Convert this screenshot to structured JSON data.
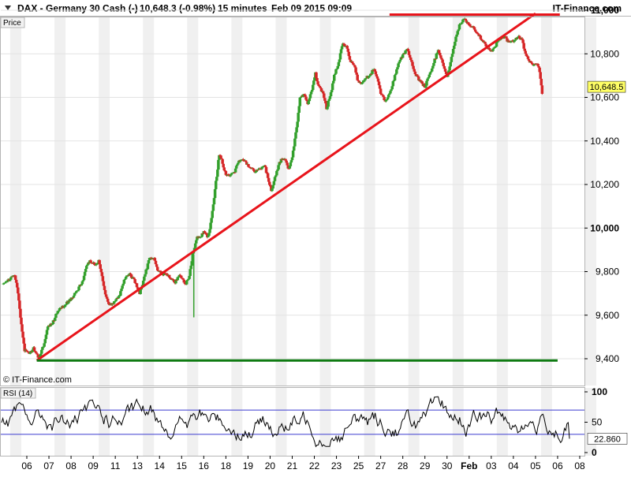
{
  "header": {
    "title": "DAX - Germany 30 Cash (-)",
    "quote": "10,648.3 (-0.98%)",
    "interval": "15 minutes",
    "datetime": "Feb 09 2015 09:09",
    "brand": "IT-Finance.com"
  },
  "price_panel": {
    "tab_label": "Price",
    "copyright": "© IT-Finance.com"
  },
  "rsi_panel": {
    "tab_label": "RSI (14)"
  },
  "colors": {
    "up_candle": "#33a02c",
    "down_candle": "#d62728",
    "trendline": "#e8141b",
    "support": "#0f7b12",
    "rsi_line": "#000000",
    "rsi_bands": "#3a3acf",
    "last_price_box": "#ffff66"
  },
  "chart_data": [
    {
      "type": "candlestick",
      "name": "Price",
      "yticks": [
        "11,000",
        "10,800",
        "10,600",
        "10,400",
        "10,200",
        "10,000",
        "9,800",
        "9,600",
        "9,400"
      ],
      "ylim": [
        9310,
        11090
      ],
      "xticks": [
        "06",
        "07",
        "08",
        "09",
        "11",
        "13",
        "14",
        "15",
        "16",
        "18",
        "19",
        "20",
        "21",
        "22",
        "23",
        "25",
        "27",
        "28",
        "29",
        "30",
        "Feb",
        "03",
        "04",
        "05",
        "06",
        "08"
      ],
      "xlim": [
        0,
        25.8
      ],
      "last_value": "10,648.5",
      "path": [
        [
          -1.1,
          9740
        ],
        [
          -0.85,
          9760
        ],
        [
          -0.55,
          9785
        ],
        [
          -0.4,
          9700
        ],
        [
          -0.25,
          9560
        ],
        [
          -0.1,
          9440
        ],
        [
          0.15,
          9425
        ],
        [
          0.3,
          9450
        ],
        [
          0.55,
          9400
        ],
        [
          0.75,
          9460
        ],
        [
          0.95,
          9550
        ],
        [
          1.15,
          9560
        ],
        [
          1.4,
          9620
        ],
        [
          1.65,
          9640
        ],
        [
          1.85,
          9660
        ],
        [
          2.2,
          9700
        ],
        [
          2.55,
          9760
        ],
        [
          2.7,
          9830
        ],
        [
          2.85,
          9850
        ],
        [
          3.1,
          9830
        ],
        [
          3.25,
          9850
        ],
        [
          3.4,
          9780
        ],
        [
          3.55,
          9700
        ],
        [
          3.7,
          9650
        ],
        [
          3.95,
          9660
        ],
        [
          4.2,
          9690
        ],
        [
          4.4,
          9760
        ],
        [
          4.65,
          9790
        ],
        [
          4.85,
          9760
        ],
        [
          5.1,
          9700
        ],
        [
          5.35,
          9790
        ],
        [
          5.55,
          9860
        ],
        [
          5.75,
          9860
        ],
        [
          5.95,
          9800
        ],
        [
          6.15,
          9790
        ],
        [
          6.4,
          9780
        ],
        [
          6.7,
          9750
        ],
        [
          6.9,
          9790
        ],
        [
          7.15,
          9740
        ],
        [
          7.35,
          9780
        ],
        [
          7.5,
          9880
        ],
        [
          7.7,
          9960
        ],
        [
          7.85,
          9960
        ],
        [
          8.0,
          9980
        ],
        [
          8.2,
          9960
        ],
        [
          8.35,
          10040
        ],
        [
          8.55,
          10210
        ],
        [
          8.7,
          10340
        ],
        [
          8.85,
          10300
        ],
        [
          9.0,
          10240
        ],
        [
          9.2,
          10240
        ],
        [
          9.4,
          10260
        ],
        [
          9.55,
          10300
        ],
        [
          9.75,
          10320
        ],
        [
          9.9,
          10300
        ],
        [
          10.1,
          10280
        ],
        [
          10.3,
          10260
        ],
        [
          10.55,
          10270
        ],
        [
          10.75,
          10290
        ],
        [
          10.9,
          10230
        ],
        [
          11.05,
          10170
        ],
        [
          11.3,
          10260
        ],
        [
          11.5,
          10320
        ],
        [
          11.7,
          10310
        ],
        [
          11.85,
          10270
        ],
        [
          12.0,
          10330
        ],
        [
          12.2,
          10460
        ],
        [
          12.35,
          10600
        ],
        [
          12.55,
          10610
        ],
        [
          12.7,
          10570
        ],
        [
          12.9,
          10640
        ],
        [
          13.05,
          10710
        ],
        [
          13.2,
          10650
        ],
        [
          13.4,
          10620
        ],
        [
          13.55,
          10550
        ],
        [
          13.75,
          10620
        ],
        [
          13.9,
          10700
        ],
        [
          14.1,
          10760
        ],
        [
          14.25,
          10840
        ],
        [
          14.45,
          10840
        ],
        [
          14.6,
          10770
        ],
        [
          14.8,
          10750
        ],
        [
          14.95,
          10680
        ],
        [
          15.1,
          10660
        ],
        [
          15.3,
          10690
        ],
        [
          15.5,
          10700
        ],
        [
          15.7,
          10730
        ],
        [
          15.85,
          10690
        ],
        [
          16.0,
          10620
        ],
        [
          16.2,
          10580
        ],
        [
          16.4,
          10620
        ],
        [
          16.6,
          10680
        ],
        [
          16.8,
          10760
        ],
        [
          17.0,
          10790
        ],
        [
          17.2,
          10820
        ],
        [
          17.4,
          10760
        ],
        [
          17.6,
          10700
        ],
        [
          17.8,
          10670
        ],
        [
          18.0,
          10650
        ],
        [
          18.2,
          10700
        ],
        [
          18.4,
          10760
        ],
        [
          18.6,
          10820
        ],
        [
          18.8,
          10760
        ],
        [
          19.0,
          10690
        ],
        [
          19.2,
          10780
        ],
        [
          19.4,
          10880
        ],
        [
          19.6,
          10940
        ],
        [
          19.8,
          10960
        ],
        [
          20.0,
          10930
        ],
        [
          20.2,
          10920
        ],
        [
          20.4,
          10890
        ],
        [
          20.6,
          10860
        ],
        [
          20.8,
          10830
        ],
        [
          21.0,
          10810
        ],
        [
          21.2,
          10840
        ],
        [
          21.4,
          10870
        ],
        [
          21.6,
          10880
        ],
        [
          21.8,
          10850
        ],
        [
          22.0,
          10860
        ],
        [
          22.2,
          10880
        ],
        [
          22.4,
          10860
        ],
        [
          22.55,
          10800
        ],
        [
          22.7,
          10770
        ],
        [
          22.85,
          10750
        ],
        [
          23.0,
          10760
        ],
        [
          23.15,
          10740
        ],
        [
          23.3,
          10620
        ]
      ],
      "spikes": [
        [
          7.55,
          9590
        ]
      ],
      "lines": [
        {
          "name": "rising-trendline",
          "from": [
            0.45,
            9392
          ],
          "to": [
            23.0,
            10985
          ]
        },
        {
          "name": "resistance-line",
          "from": [
            16.4,
            10980
          ],
          "to": [
            24.1,
            10980
          ]
        },
        {
          "name": "support-line",
          "from": [
            0.45,
            9392
          ],
          "to": [
            24.0,
            9392
          ]
        }
      ]
    },
    {
      "type": "line",
      "name": "RSI (14)",
      "yticks": [
        "100",
        "50",
        "0"
      ],
      "ylim": [
        0,
        100
      ],
      "bands": [
        70,
        30
      ],
      "last_value": "22.860"
    }
  ]
}
